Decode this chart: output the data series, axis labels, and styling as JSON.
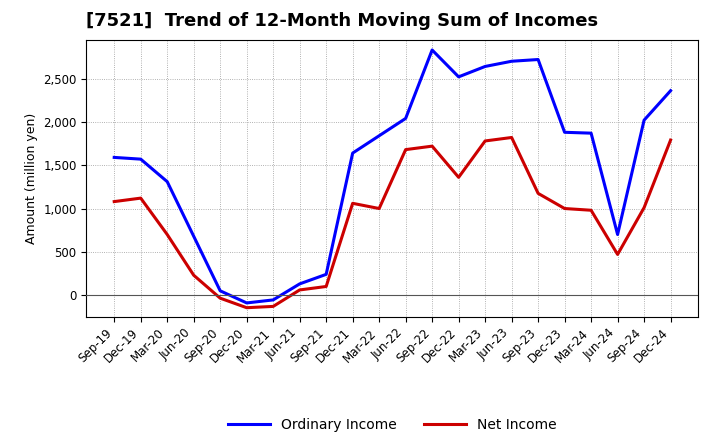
{
  "title": "[7521]  Trend of 12-Month Moving Sum of Incomes",
  "ylabel": "Amount (million yen)",
  "x_labels": [
    "Sep-19",
    "Dec-19",
    "Mar-20",
    "Jun-20",
    "Sep-20",
    "Dec-20",
    "Mar-21",
    "Jun-21",
    "Sep-21",
    "Dec-21",
    "Mar-22",
    "Jun-22",
    "Sep-22",
    "Dec-22",
    "Mar-23",
    "Jun-23",
    "Sep-23",
    "Dec-23",
    "Mar-24",
    "Jun-24",
    "Sep-24",
    "Dec-24"
  ],
  "ordinary_income": [
    1590,
    1570,
    1310,
    680,
    50,
    -90,
    -55,
    130,
    240,
    1640,
    1840,
    2040,
    2830,
    2520,
    2640,
    2700,
    2720,
    1880,
    1870,
    700,
    2020,
    2360
  ],
  "net_income": [
    1080,
    1120,
    700,
    230,
    -35,
    -145,
    -130,
    60,
    100,
    1060,
    1000,
    1680,
    1720,
    1360,
    1780,
    1820,
    1175,
    1000,
    980,
    470,
    1010,
    1790
  ],
  "ordinary_income_color": "#0000FF",
  "net_income_color": "#CC0000",
  "ylim_min": -250,
  "ylim_max": 2950,
  "yticks": [
    0,
    500,
    1000,
    1500,
    2000,
    2500
  ],
  "background_color": "#FFFFFF",
  "grid_color": "#999999",
  "legend_labels": [
    "Ordinary Income",
    "Net Income"
  ],
  "line_width": 2.2,
  "title_fontsize": 13,
  "axis_label_fontsize": 9,
  "tick_fontsize": 8.5,
  "legend_fontsize": 10
}
